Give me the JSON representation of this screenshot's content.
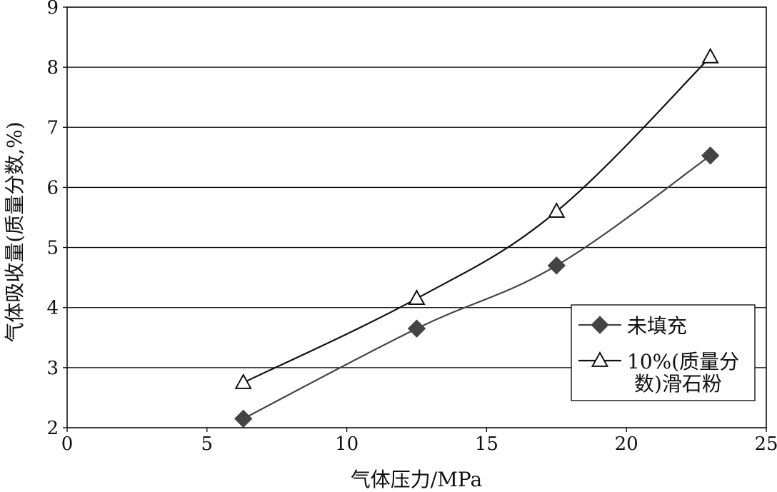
{
  "chart_data": {
    "type": "line",
    "title": "",
    "xlabel": "气体压力/MPa",
    "ylabel": "气体吸收量(质量分数,%)",
    "xlim": [
      0,
      25
    ],
    "ylim": [
      2,
      9
    ],
    "x_ticks": [
      0,
      5,
      10,
      15,
      20,
      25
    ],
    "y_ticks": [
      2,
      3,
      4,
      5,
      6,
      7,
      8,
      9
    ],
    "grid": "horizontal",
    "legend_position": "lower-right",
    "series": [
      {
        "name": "未填充",
        "marker": "filled-diamond",
        "color": "#444444",
        "x": [
          6.3,
          12.5,
          17.5,
          23.0
        ],
        "y": [
          2.15,
          3.65,
          4.7,
          6.53
        ]
      },
      {
        "name": "10%(质量分数)滑石粉",
        "marker": "open-triangle",
        "color": "#111111",
        "x": [
          6.3,
          12.5,
          17.5,
          23.0
        ],
        "y": [
          2.75,
          4.15,
          5.6,
          8.17
        ]
      }
    ],
    "legend_lines": [
      [
        "未填充"
      ],
      [
        "10%(质量分",
        "数)滑石粉"
      ]
    ]
  }
}
